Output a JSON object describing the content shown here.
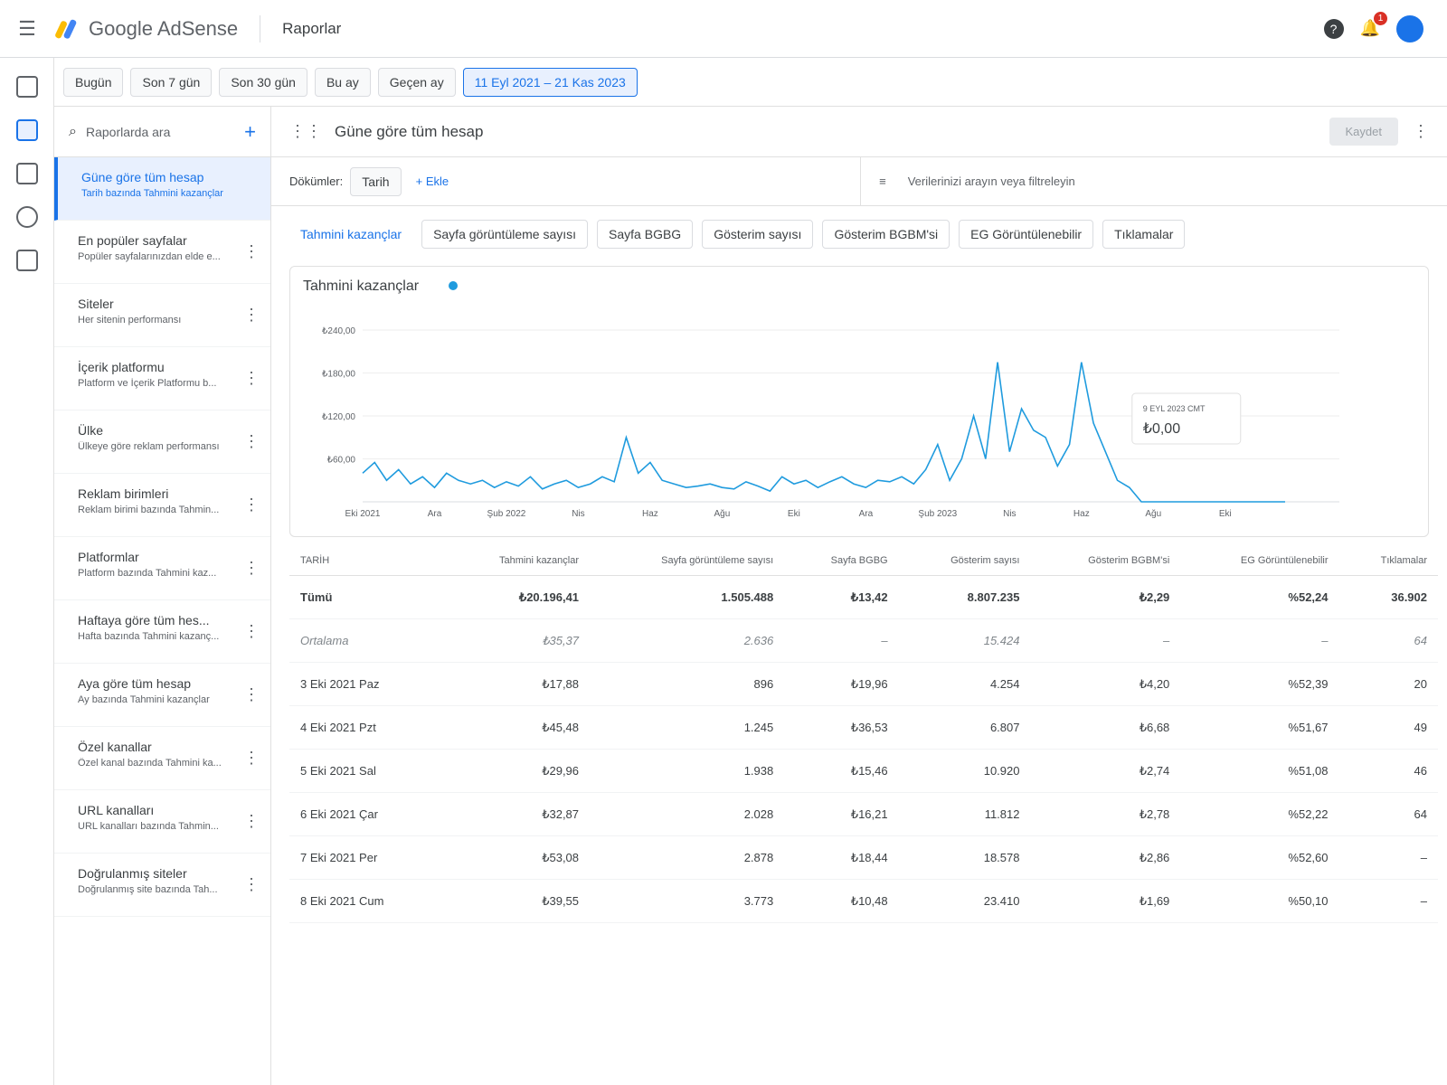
{
  "header": {
    "product": "Google AdSense",
    "section": "Raporlar",
    "notification_count": "1"
  },
  "date_filters": [
    "Bugün",
    "Son 7 gün",
    "Son 30 gün",
    "Bu ay",
    "Geçen ay",
    "11 Eyl 2021 – 21 Kas 2023"
  ],
  "sidebar": {
    "search": "Raporlarda ara",
    "reports": [
      {
        "title": "Güne göre tüm hesap",
        "subtitle": "Tarih bazında Tahmini kazançlar"
      },
      {
        "title": "En popüler sayfalar",
        "subtitle": "Popüler sayfalarınızdan elde e..."
      },
      {
        "title": "Siteler",
        "subtitle": "Her sitenin performansı"
      },
      {
        "title": "İçerik platformu",
        "subtitle": "Platform ve İçerik Platformu b..."
      },
      {
        "title": "Ülke",
        "subtitle": "Ülkeye göre reklam performansı"
      },
      {
        "title": "Reklam birimleri",
        "subtitle": "Reklam birimi bazında Tahmin..."
      },
      {
        "title": "Platformlar",
        "subtitle": "Platform bazında Tahmini kaz..."
      },
      {
        "title": "Haftaya göre tüm hes...",
        "subtitle": "Hafta bazında Tahmini kazanç..."
      },
      {
        "title": "Aya göre tüm hesap",
        "subtitle": "Ay bazında Tahmini kazançlar"
      },
      {
        "title": "Özel kanallar",
        "subtitle": "Özel kanal bazında Tahmini ka..."
      },
      {
        "title": "URL kanalları",
        "subtitle": "URL kanalları bazında Tahmin..."
      },
      {
        "title": "Doğrulanmış siteler",
        "subtitle": "Doğrulanmış site bazında Tah..."
      }
    ]
  },
  "report": {
    "title": "Güne göre tüm hesap",
    "save": "Kaydet",
    "breakdown_label": "Dökümler:",
    "breakdown": "Tarih",
    "add": "Ekle",
    "filter_placeholder": "Verilerinizi arayın veya filtreleyin",
    "metrics": [
      "Tahmini kazançlar",
      "Sayfa görüntüleme sayısı",
      "Sayfa BGBG",
      "Gösterim sayısı",
      "Gösterim BGBM'si",
      "EG Görüntülenebilir",
      "Tıklamalar"
    ]
  },
  "chart_data": {
    "type": "line",
    "title": "Tahmini kazançlar",
    "color": "#1f9bde",
    "categories": [
      "Eki 2021",
      null,
      null,
      null,
      null,
      null,
      "Ara",
      null,
      null,
      null,
      null,
      null,
      "Şub 2022",
      null,
      null,
      null,
      null,
      null,
      "Nis",
      null,
      null,
      null,
      null,
      null,
      "Haz",
      null,
      null,
      null,
      null,
      null,
      "Ağu",
      null,
      null,
      null,
      null,
      null,
      "Eki",
      null,
      null,
      null,
      null,
      null,
      "Ara",
      null,
      null,
      null,
      null,
      null,
      "Şub 2023",
      null,
      null,
      null,
      null,
      null,
      "Nis",
      null,
      null,
      null,
      null,
      null,
      "Haz",
      null,
      null,
      null,
      null,
      null,
      "Ağu",
      null,
      null,
      null,
      null,
      null,
      "Eki",
      null,
      null,
      null,
      null,
      null
    ],
    "values": [
      40,
      55,
      30,
      45,
      25,
      35,
      20,
      40,
      30,
      25,
      30,
      20,
      28,
      22,
      35,
      18,
      25,
      30,
      20,
      25,
      35,
      28,
      90,
      40,
      55,
      30,
      25,
      20,
      22,
      25,
      20,
      18,
      28,
      22,
      15,
      35,
      25,
      30,
      20,
      28,
      35,
      25,
      20,
      30,
      28,
      35,
      25,
      45,
      80,
      30,
      60,
      120,
      60,
      195,
      70,
      130,
      100,
      90,
      50,
      80,
      195,
      110,
      70,
      30,
      20,
      0,
      0,
      0,
      0,
      0,
      0,
      0,
      0,
      0,
      0,
      0,
      0,
      0
    ],
    "ylim": [
      0,
      240
    ],
    "yticks": [
      {
        "value": 60,
        "label": "₺60,00"
      },
      {
        "value": 120,
        "label": "₺120,00"
      },
      {
        "value": 180,
        "label": "₺180,00"
      },
      {
        "value": 240,
        "label": "₺240,00"
      }
    ],
    "grid": true,
    "tooltip": {
      "date": "9 EYL 2023 CMT",
      "value": "₺0,00"
    }
  },
  "table": {
    "columns": [
      "TARİH",
      "Tahmini kazançlar",
      "Sayfa görüntüleme sayısı",
      "Sayfa BGBG",
      "Gösterim sayısı",
      "Gösterim BGBM'si",
      "EG Görüntülenebilir",
      "Tıklamalar"
    ],
    "rows": [
      [
        "Tümü",
        "₺20.196,41",
        "1.505.488",
        "₺13,42",
        "8.807.235",
        "₺2,29",
        "%52,24",
        "36.902"
      ],
      [
        "Ortalama",
        "₺35,37",
        "2.636",
        "–",
        "15.424",
        "–",
        "–",
        "64"
      ],
      [
        "3 Eki 2021 Paz",
        "₺17,88",
        "896",
        "₺19,96",
        "4.254",
        "₺4,20",
        "%52,39",
        "20"
      ],
      [
        "4 Eki 2021 Pzt",
        "₺45,48",
        "1.245",
        "₺36,53",
        "6.807",
        "₺6,68",
        "%51,67",
        "49"
      ],
      [
        "5 Eki 2021 Sal",
        "₺29,96",
        "1.938",
        "₺15,46",
        "10.920",
        "₺2,74",
        "%51,08",
        "46"
      ],
      [
        "6 Eki 2021 Çar",
        "₺32,87",
        "2.028",
        "₺16,21",
        "11.812",
        "₺2,78",
        "%52,22",
        "64"
      ],
      [
        "7 Eki 2021 Per",
        "₺53,08",
        "2.878",
        "₺18,44",
        "18.578",
        "₺2,86",
        "%52,60",
        "–"
      ],
      [
        "8 Eki 2021 Cum",
        "₺39,55",
        "3.773",
        "₺10,48",
        "23.410",
        "₺1,69",
        "%50,10",
        "–"
      ]
    ]
  }
}
